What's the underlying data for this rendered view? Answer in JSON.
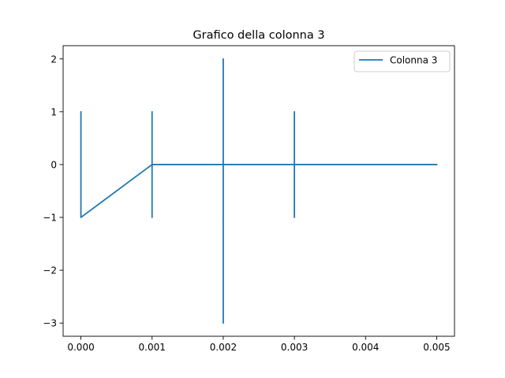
{
  "chart_data": {
    "type": "line",
    "title": "Grafico della colonna 3",
    "xlabel": "",
    "ylabel": "",
    "xlim": [
      -0.00025,
      0.00525
    ],
    "ylim": [
      -3.25,
      2.25
    ],
    "x_ticks": [
      0.0,
      0.001,
      0.002,
      0.003,
      0.004,
      0.005
    ],
    "x_tick_labels": [
      "0.000",
      "0.001",
      "0.002",
      "0.003",
      "0.004",
      "0.005"
    ],
    "y_ticks": [
      -3,
      -2,
      -1,
      0,
      1,
      2
    ],
    "y_tick_labels": [
      "−3",
      "−2",
      "−1",
      "0",
      "1",
      "2"
    ],
    "grid": false,
    "legend_position": "top-right",
    "series": [
      {
        "name": "Colonna 3",
        "color": "#1f77b4",
        "x": [
          0,
          0,
          0,
          0,
          0,
          0,
          0.001,
          0.001,
          0.001,
          0.001,
          0.001,
          0.001,
          0.001,
          0.002,
          0.002,
          0.002,
          0.002,
          0.002,
          0.003,
          0.003,
          0.003,
          0.003,
          0.003,
          0.005
        ],
        "y": [
          0,
          1,
          0,
          1,
          0,
          -1,
          0,
          1,
          -1,
          1,
          -1,
          0,
          0,
          0,
          2,
          -3,
          0,
          0,
          0,
          1,
          -1,
          0,
          0,
          0
        ]
      }
    ]
  }
}
